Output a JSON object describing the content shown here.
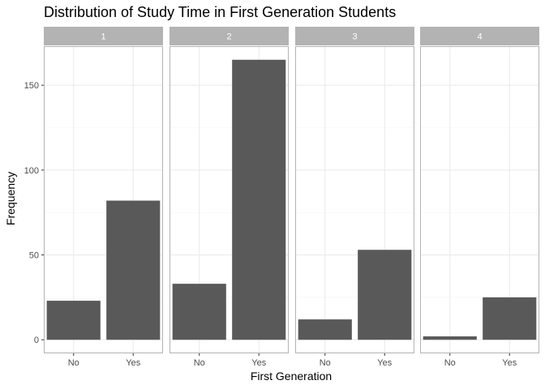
{
  "chart_data": {
    "type": "bar",
    "title": "Distribution of Study Time in First Generation Students",
    "xlabel": "First Generation",
    "ylabel": "Frequency",
    "categories": [
      "No",
      "Yes"
    ],
    "facets": [
      {
        "label": "1",
        "values": [
          23,
          82
        ]
      },
      {
        "label": "2",
        "values": [
          33,
          165
        ]
      },
      {
        "label": "3",
        "values": [
          12,
          53
        ]
      },
      {
        "label": "4",
        "values": [
          2,
          25
        ]
      }
    ],
    "ylim": [
      -8,
      173
    ],
    "yticks": [
      0,
      50,
      100,
      150
    ],
    "grid": true,
    "legend": "none"
  },
  "colors": {
    "bar": "#595959",
    "strip": "#b3b3b3",
    "panel_border": "#b3b3b3",
    "grid_major": "#ebebeb",
    "grid_minor": "#f5f5f5"
  }
}
